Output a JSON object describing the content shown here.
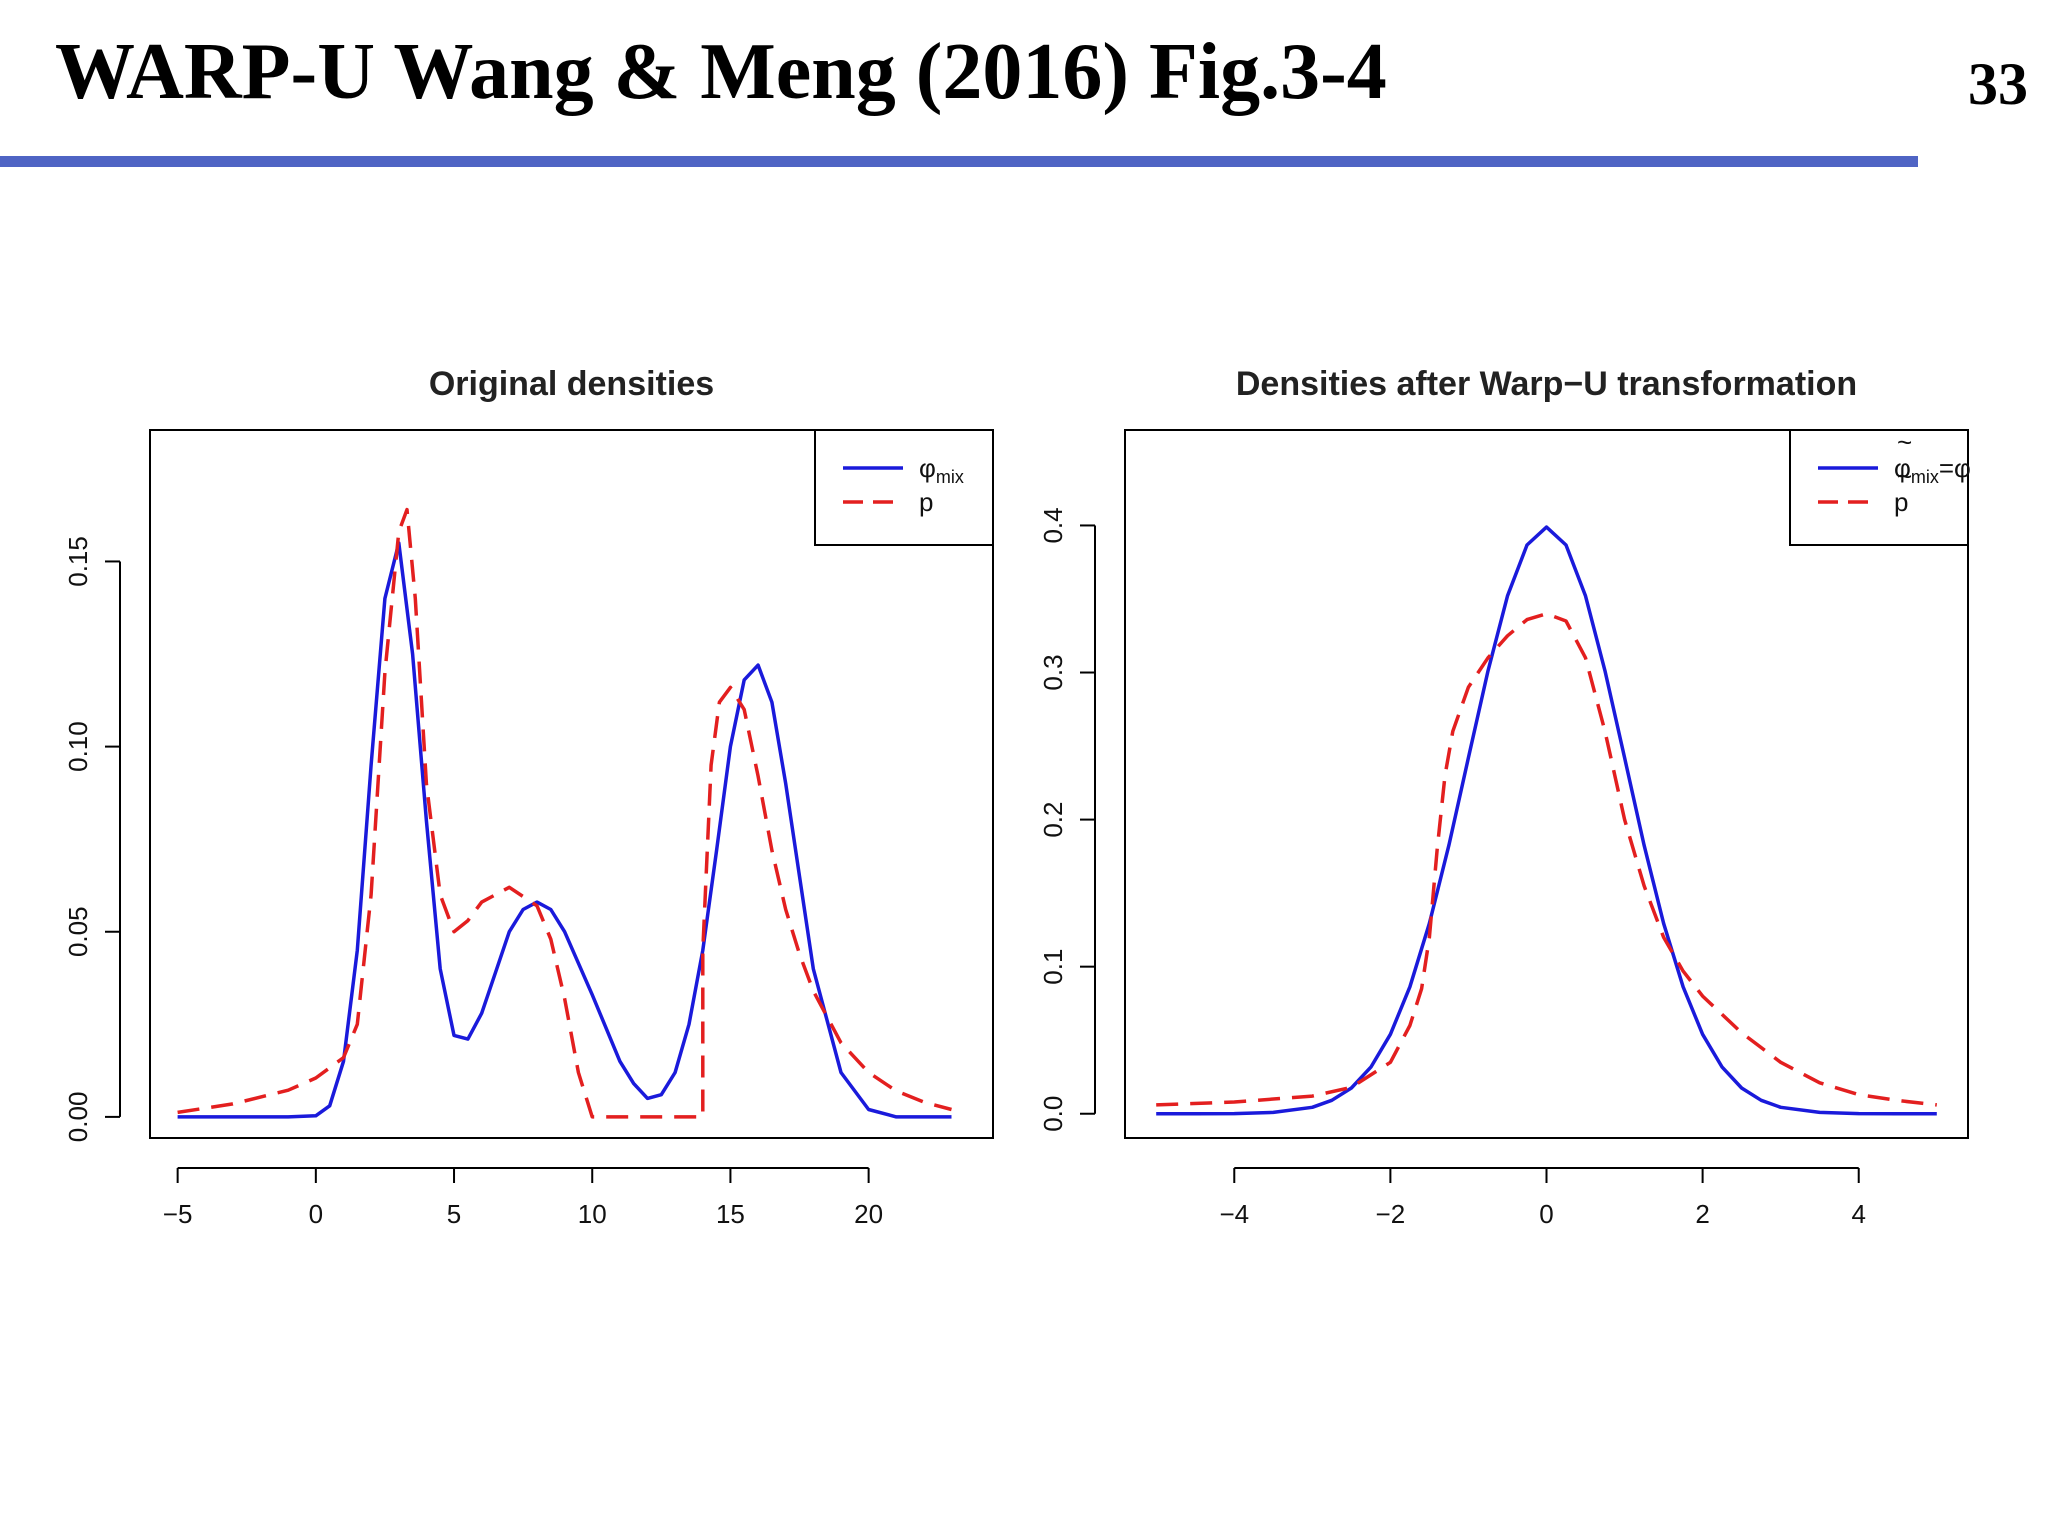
{
  "slide": {
    "title": "WARP-U Wang & Meng (2016) Fig.3-4",
    "page_number": "33"
  },
  "colors": {
    "accent_rule": "#4f64c4",
    "series_blue": "#1a1adb",
    "series_red": "#e31f1f"
  },
  "chart_data": [
    {
      "type": "line",
      "title": "Original densities",
      "xlabel": "",
      "ylabel": "",
      "xlim": [
        -6,
        24.5
      ],
      "ylim": [
        -0.0057,
        0.1855
      ],
      "xticks": [
        -5,
        0,
        5,
        10,
        15,
        20
      ],
      "xtick_labels": [
        "−5",
        "0",
        "5",
        "10",
        "15",
        "20"
      ],
      "yticks": [
        0,
        0.05,
        0.1,
        0.15
      ],
      "ytick_labels": [
        "0.00",
        "0.05",
        "0.10",
        "0.15"
      ],
      "grid": false,
      "legend": {
        "position": "top-right",
        "entries": [
          {
            "base": "φ",
            "sub": "mix",
            "suffix": "",
            "accent": "",
            "style": "solid",
            "color": "#1a1adb"
          },
          {
            "base": "p",
            "sub": "",
            "suffix": "",
            "accent": "",
            "style": "dashed",
            "color": "#e31f1f"
          }
        ]
      },
      "series": [
        {
          "style": "solid",
          "color": "#1a1adb",
          "x": [
            -5,
            -1,
            0,
            0.5,
            1,
            1.5,
            2,
            2.5,
            3,
            3.5,
            4,
            4.5,
            5,
            5.5,
            6,
            6.5,
            7,
            7.5,
            8,
            8.5,
            9,
            10,
            11,
            11.5,
            12,
            12.5,
            13,
            13.5,
            14,
            14.5,
            15,
            15.5,
            16,
            16.5,
            17,
            17.5,
            18,
            19,
            20,
            21,
            23
          ],
          "y": [
            0,
            0,
            0.0003,
            0.003,
            0.015,
            0.045,
            0.095,
            0.14,
            0.155,
            0.125,
            0.08,
            0.04,
            0.022,
            0.021,
            0.028,
            0.039,
            0.05,
            0.056,
            0.058,
            0.056,
            0.05,
            0.033,
            0.015,
            0.009,
            0.005,
            0.006,
            0.012,
            0.025,
            0.045,
            0.072,
            0.1,
            0.118,
            0.122,
            0.112,
            0.09,
            0.065,
            0.04,
            0.012,
            0.002,
            0,
            0
          ]
        },
        {
          "style": "dashed",
          "color": "#e31f1f",
          "x": [
            -5,
            -3,
            -1,
            0,
            1,
            1.5,
            2,
            2.5,
            3,
            3.3,
            3.6,
            4,
            4.5,
            5,
            5.5,
            6,
            7,
            8,
            8.5,
            9,
            9.5,
            10,
            11,
            12,
            13,
            14,
            14,
            14.3,
            14.6,
            15,
            15.5,
            16,
            16.5,
            17,
            17.5,
            18,
            19,
            20,
            21,
            22,
            23
          ],
          "y": [
            0.0012,
            0.0035,
            0.0072,
            0.0105,
            0.016,
            0.025,
            0.06,
            0.12,
            0.158,
            0.164,
            0.14,
            0.09,
            0.06,
            0.05,
            0.053,
            0.058,
            0.062,
            0.057,
            0.048,
            0.032,
            0.012,
            0,
            0,
            0,
            0,
            0,
            0.045,
            0.095,
            0.112,
            0.116,
            0.11,
            0.092,
            0.072,
            0.056,
            0.044,
            0.034,
            0.02,
            0.012,
            0.007,
            0.004,
            0.002
          ]
        }
      ]
    },
    {
      "type": "line",
      "title": "Densities after Warp−U transformation",
      "xlabel": "",
      "ylabel": "",
      "xlim": [
        -5.4,
        5.4
      ],
      "ylim": [
        -0.0165,
        0.4649
      ],
      "xticks": [
        -4,
        -2,
        0,
        2,
        4
      ],
      "xtick_labels": [
        "−4",
        "−2",
        "0",
        "2",
        "4"
      ],
      "yticks": [
        0,
        0.1,
        0.2,
        0.3,
        0.4
      ],
      "ytick_labels": [
        "0.0",
        "0.1",
        "0.2",
        "0.3",
        "0.4"
      ],
      "grid": false,
      "legend": {
        "position": "top-right",
        "entries": [
          {
            "base": "φ",
            "sub": "mix",
            "suffix": "=φ",
            "accent": "~",
            "style": "solid",
            "color": "#1a1adb"
          },
          {
            "base": "p",
            "sub": "",
            "suffix": "",
            "accent": "~",
            "style": "dashed",
            "color": "#e31f1f"
          }
        ]
      },
      "series": [
        {
          "style": "solid",
          "color": "#1a1adb",
          "x": [
            -5,
            -4.5,
            -4,
            -3.5,
            -3,
            -2.75,
            -2.5,
            -2.25,
            -2,
            -1.75,
            -1.5,
            -1.25,
            -1,
            -0.75,
            -0.5,
            -0.25,
            0,
            0.25,
            0.5,
            0.75,
            1,
            1.25,
            1.5,
            1.75,
            2,
            2.25,
            2.5,
            2.75,
            3,
            3.5,
            4,
            4.5,
            5
          ],
          "y": [
            0,
            0,
            0.0001,
            0.0009,
            0.0044,
            0.0091,
            0.0175,
            0.0317,
            0.054,
            0.0863,
            0.1295,
            0.1826,
            0.242,
            0.3011,
            0.3521,
            0.3867,
            0.3989,
            0.3867,
            0.3521,
            0.3011,
            0.242,
            0.1826,
            0.1295,
            0.0863,
            0.054,
            0.0317,
            0.0175,
            0.0091,
            0.0044,
            0.0009,
            0.0001,
            0,
            0
          ]
        },
        {
          "style": "dashed",
          "color": "#e31f1f",
          "x": [
            -5,
            -4,
            -3,
            -2.5,
            -2,
            -1.75,
            -1.6,
            -1.5,
            -1.4,
            -1.3,
            -1.2,
            -1,
            -0.75,
            -0.5,
            -0.25,
            0,
            0.25,
            0.5,
            0.75,
            1,
            1.25,
            1.5,
            1.75,
            2,
            2.5,
            3,
            3.5,
            4,
            4.5,
            5
          ],
          "y": [
            0.006,
            0.008,
            0.012,
            0.018,
            0.035,
            0.06,
            0.085,
            0.12,
            0.18,
            0.23,
            0.26,
            0.29,
            0.31,
            0.325,
            0.336,
            0.34,
            0.335,
            0.31,
            0.26,
            0.2,
            0.155,
            0.12,
            0.097,
            0.08,
            0.055,
            0.035,
            0.021,
            0.013,
            0.009,
            0.006
          ]
        }
      ]
    }
  ]
}
